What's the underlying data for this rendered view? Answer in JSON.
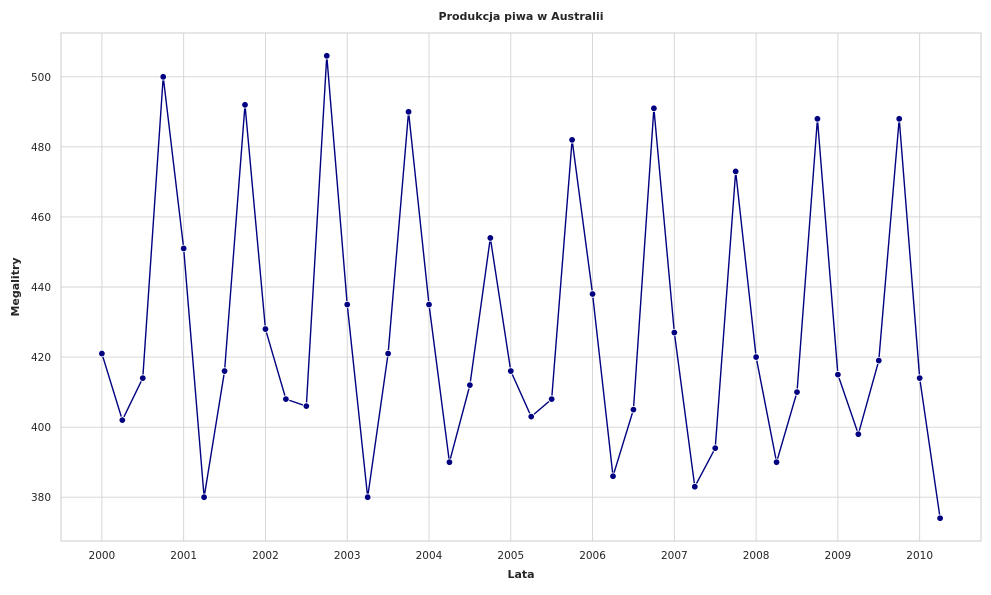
{
  "chart_data": {
    "type": "line",
    "title": "Produkcja piwa w Australii",
    "xlabel": "Lata",
    "ylabel": "Megalitry",
    "x_ticks": [
      "2000",
      "2001",
      "2002",
      "2003",
      "2004",
      "2005",
      "2006",
      "2007",
      "2008",
      "2009",
      "2010"
    ],
    "y_ticks": [
      380,
      400,
      420,
      440,
      460,
      480,
      500
    ],
    "xlim": [
      "1999-07",
      "2010-10"
    ],
    "ylim": [
      367.5,
      512.5
    ],
    "grid": true,
    "legend": "none",
    "colors": {
      "series": "#000080",
      "grid": "#d3d3d3"
    },
    "series": [
      {
        "x": [
          "2000-Q1",
          "2000-Q2",
          "2000-Q3",
          "2000-Q4",
          "2001-Q1",
          "2001-Q2",
          "2001-Q3",
          "2001-Q4",
          "2002-Q1",
          "2002-Q2",
          "2002-Q3",
          "2002-Q4",
          "2003-Q1",
          "2003-Q2",
          "2003-Q3",
          "2003-Q4",
          "2004-Q1",
          "2004-Q2",
          "2004-Q3",
          "2004-Q4",
          "2005-Q1",
          "2005-Q2",
          "2005-Q3",
          "2005-Q4",
          "2006-Q1",
          "2006-Q2",
          "2006-Q3",
          "2006-Q4",
          "2007-Q1",
          "2007-Q2",
          "2007-Q3",
          "2007-Q4",
          "2008-Q1",
          "2008-Q2",
          "2008-Q3",
          "2008-Q4",
          "2009-Q1",
          "2009-Q2",
          "2009-Q3",
          "2009-Q4",
          "2010-Q1",
          "2010-Q2"
        ],
        "values": [
          421,
          402,
          414,
          500,
          451,
          380,
          416,
          492,
          428,
          408,
          406,
          506,
          435,
          380,
          421,
          490,
          435,
          390,
          412,
          454,
          416,
          403,
          408,
          482,
          438,
          386,
          405,
          491,
          427,
          383,
          394,
          473,
          420,
          390,
          410,
          488,
          415,
          398,
          419,
          488,
          414,
          374
        ]
      }
    ]
  }
}
